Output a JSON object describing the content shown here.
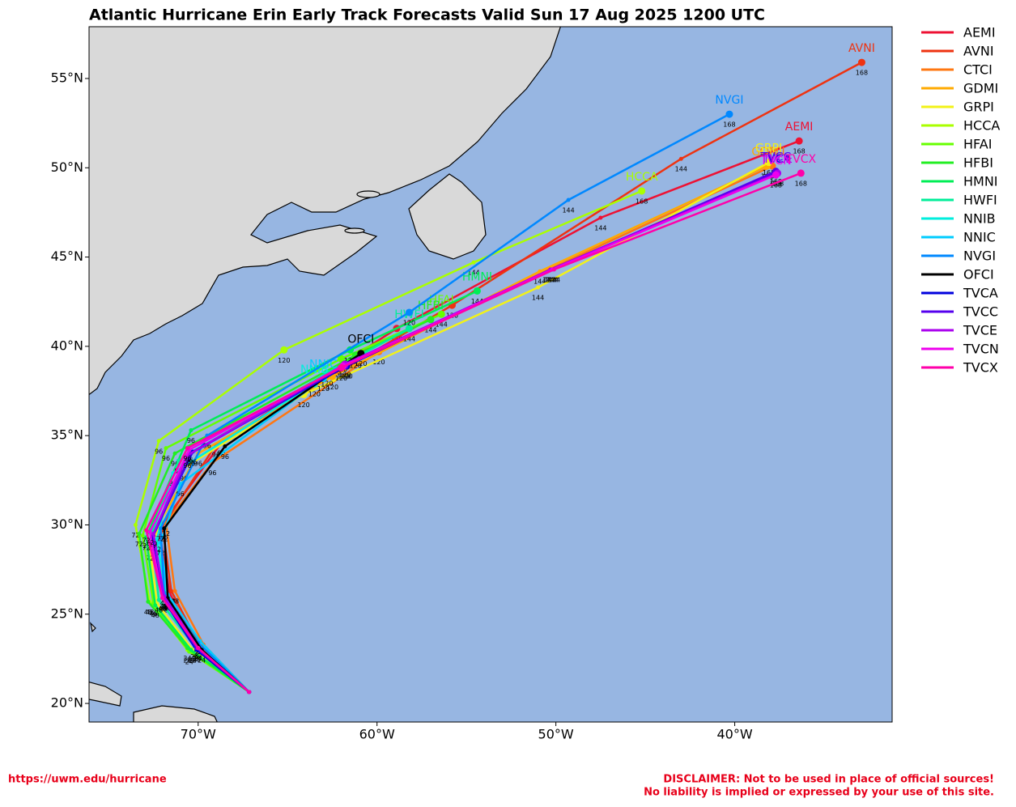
{
  "chart_data": {
    "type": "track",
    "title": "Atlantic Hurricane Erin Early Track Forecasts Valid Sun 17 Aug 2025 1200 UTC",
    "xlim": [
      -76.1,
      -31.2
    ],
    "ylim": [
      18.96,
      57.9
    ],
    "xticks": [
      {
        "value": -70,
        "label": "70°W"
      },
      {
        "value": -60,
        "label": "60°W"
      },
      {
        "value": -50,
        "label": "50°W"
      },
      {
        "value": -40,
        "label": "40°W"
      }
    ],
    "yticks": [
      {
        "value": 20,
        "label": "20°N"
      },
      {
        "value": 25,
        "label": "25°N"
      },
      {
        "value": 30,
        "label": "30°N"
      },
      {
        "value": 35,
        "label": "35°N"
      },
      {
        "value": 40,
        "label": "40°N"
      },
      {
        "value": 45,
        "label": "45°N"
      },
      {
        "value": 50,
        "label": "50°N"
      },
      {
        "value": 55,
        "label": "55°N"
      }
    ],
    "hour_labels": [
      null,
      24,
      48,
      72,
      96,
      120,
      144,
      168
    ],
    "legend": "outside-right",
    "series": [
      {
        "name": "AEMI",
        "color": "#ee1133",
        "x": [
          -67.15,
          -70.1,
          -71.6,
          -72.2,
          -68.7,
          -58.9,
          -47.5,
          -36.4
        ],
        "values": [
          20.64,
          23.3,
          26.2,
          29.8,
          34.6,
          41.0,
          47.2,
          51.5
        ]
      },
      {
        "name": "AVNI",
        "color": "#ee3311",
        "x": [
          -67.15,
          -69.9,
          -71.5,
          -72.0,
          -69.0,
          -55.8,
          -43.0,
          -32.9
        ],
        "values": [
          20.64,
          23.2,
          26.3,
          29.9,
          34.5,
          42.3,
          50.5,
          55.9
        ]
      },
      {
        "name": "CTCI",
        "color": "#ff7711",
        "x": [
          -67.15,
          -69.7,
          -71.3,
          -71.8,
          -69.2,
          -59.9,
          -50.4,
          -37.9
        ],
        "values": [
          20.64,
          23.3,
          26.3,
          30.1,
          33.5,
          39.7,
          44.3,
          50.1
        ]
      },
      {
        "name": "GDMI",
        "color": "#ffaa00",
        "x": [
          -67.15,
          -70.2,
          -71.9,
          -72.6,
          -70.0,
          -62.5,
          -50.9,
          -38.2
        ],
        "values": [
          20.64,
          23.2,
          25.8,
          29.3,
          34.0,
          38.3,
          44.2,
          50.1
        ]
      },
      {
        "name": "GRPI",
        "color": "#f2f218",
        "x": [
          -67.15,
          -70.3,
          -72.3,
          -72.7,
          -70.8,
          -64.1,
          -51.0,
          -38.1
        ],
        "values": [
          20.64,
          23.0,
          25.6,
          28.7,
          33.2,
          37.3,
          43.3,
          50.3
        ]
      },
      {
        "name": "HCCA",
        "color": "#aaff00",
        "x": [
          -67.15,
          -70.6,
          -72.7,
          -73.5,
          -72.2,
          -65.2,
          -54.6,
          -45.2
        ],
        "values": [
          20.64,
          23.0,
          25.7,
          30.0,
          34.7,
          39.8,
          44.7,
          48.7
        ]
      },
      {
        "name": "HFAI",
        "color": "#66ff00",
        "x": [
          -67.15,
          -70.5,
          -72.5,
          -73.1,
          -71.8,
          -62.0,
          -56.4,
          null
        ],
        "values": [
          20.64,
          22.9,
          25.6,
          29.4,
          34.3,
          39.3,
          41.8,
          null
        ]
      },
      {
        "name": "HFBI",
        "color": "#22ee22",
        "x": [
          -67.15,
          -70.6,
          -72.8,
          -73.3,
          -71.3,
          -61.2,
          -57.0,
          null
        ],
        "values": [
          20.64,
          23.1,
          25.7,
          29.5,
          34.0,
          39.5,
          41.5,
          null
        ]
      },
      {
        "name": "HMNI",
        "color": "#00ee55",
        "x": [
          -67.15,
          -70.4,
          -72.4,
          -72.9,
          -70.4,
          -61.5,
          -54.4,
          null
        ],
        "values": [
          20.64,
          23.0,
          25.5,
          29.3,
          35.3,
          39.8,
          43.1,
          null
        ]
      },
      {
        "name": "HWFI",
        "color": "#00ee99",
        "x": [
          -67.15,
          -70.2,
          -72.2,
          -72.6,
          -71.1,
          -62.8,
          -58.2,
          null
        ],
        "values": [
          20.64,
          23.2,
          25.8,
          29.5,
          33.6,
          38.5,
          41.0,
          null
        ]
      },
      {
        "name": "NNIB",
        "color": "#00eedd",
        "x": [
          -67.15,
          -70.0,
          -71.8,
          -72.3,
          -71.4,
          -63.5,
          null,
          null
        ],
        "values": [
          20.64,
          23.4,
          26.0,
          29.2,
          32.9,
          37.9,
          null,
          null
        ]
      },
      {
        "name": "NNIC",
        "color": "#00ccff",
        "x": [
          -67.15,
          -69.9,
          -71.7,
          -72.1,
          -71.0,
          -63.0,
          null,
          null
        ],
        "values": [
          20.64,
          23.5,
          26.1,
          29.0,
          32.3,
          38.2,
          null,
          null
        ]
      },
      {
        "name": "NVGI",
        "color": "#0088ff",
        "x": [
          -67.15,
          -70.0,
          -71.9,
          -72.1,
          -69.5,
          -58.2,
          -49.3,
          -40.3
        ],
        "values": [
          20.64,
          23.4,
          26.2,
          29.8,
          35.0,
          41.9,
          48.2,
          53.0
        ]
      },
      {
        "name": "OFCI",
        "color": "#000000",
        "x": [
          -67.15,
          -69.8,
          -71.7,
          -71.9,
          -68.5,
          -60.9,
          null,
          null
        ],
        "values": [
          20.64,
          23.0,
          25.9,
          29.8,
          34.4,
          39.6,
          null,
          null
        ]
      },
      {
        "name": "TVCA",
        "color": "#0000dd",
        "x": [
          -67.15,
          -70.1,
          -72.0,
          -72.6,
          -70.3,
          -61.7,
          -50.3,
          -37.7
        ],
        "values": [
          20.64,
          23.0,
          25.9,
          29.3,
          34.1,
          38.9,
          44.3,
          49.7
        ]
      },
      {
        "name": "TVCC",
        "color": "#5500ee",
        "x": [
          -67.15,
          -70.1,
          -71.9,
          -72.5,
          -70.4,
          -61.8,
          -50.2,
          -37.7
        ],
        "values": [
          20.64,
          23.1,
          25.9,
          29.4,
          34.0,
          38.9,
          44.3,
          49.8
        ]
      },
      {
        "name": "TVCE",
        "color": "#aa00ee",
        "x": [
          -67.15,
          -70.0,
          -71.9,
          -72.5,
          -70.6,
          -61.8,
          -50.3,
          -37.6
        ],
        "values": [
          20.64,
          23.1,
          26.0,
          29.5,
          33.9,
          39.0,
          44.3,
          49.7
        ]
      },
      {
        "name": "TVCN",
        "color": "#ee00ee",
        "x": [
          -67.15,
          -70.0,
          -72.0,
          -72.7,
          -70.5,
          -61.9,
          -50.2,
          -37.7
        ],
        "values": [
          20.64,
          23.1,
          25.9,
          29.6,
          34.2,
          38.9,
          44.3,
          49.6
        ]
      },
      {
        "name": "TVCX",
        "color": "#ff00aa",
        "x": [
          -67.15,
          -70.0,
          -72.0,
          -72.9,
          -70.6,
          -62.0,
          -50.1,
          -36.3
        ],
        "values": [
          20.64,
          23.1,
          25.9,
          29.7,
          34.3,
          38.8,
          44.3,
          49.7
        ]
      }
    ]
  },
  "footer": {
    "link": "https://uwm.edu/hurricane",
    "disclaimer": [
      "DISCLAIMER: Not to be used in place of official sources!",
      "No liability is implied or expressed by your use of this site."
    ]
  }
}
